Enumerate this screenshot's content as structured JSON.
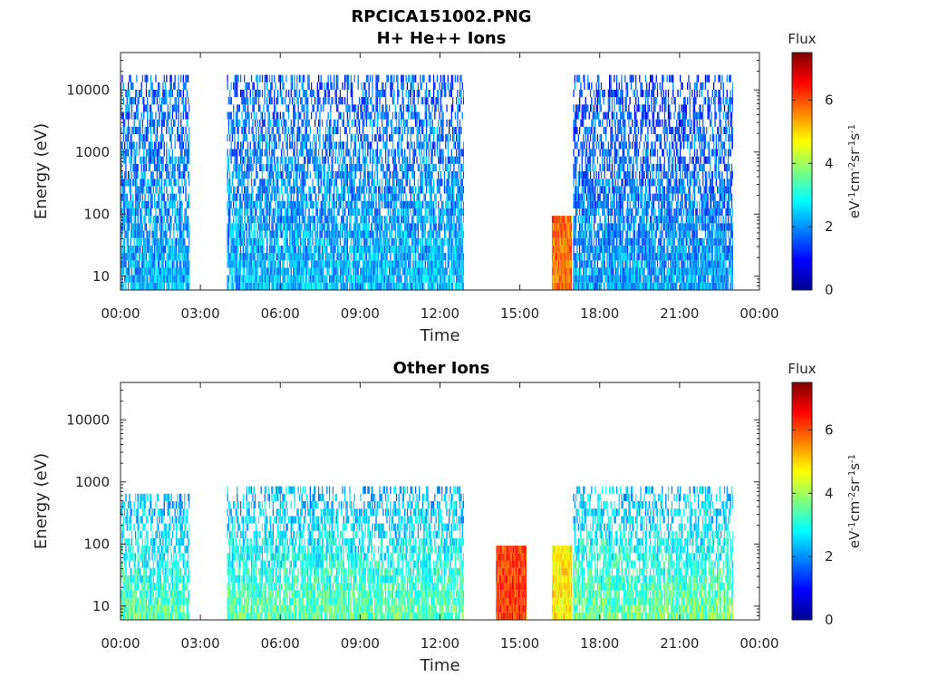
{
  "figure": {
    "title_lines": [
      "RPCICA151002.PNG",
      "H+ He++ Ions"
    ]
  },
  "colors": {
    "colormap": "jet",
    "axis": "#262626",
    "background": "#ffffff"
  },
  "chart_data": [
    {
      "type": "heatmap",
      "title": "H+ He++ Ions",
      "xlabel": "Time",
      "ylabel": "Energy (eV)",
      "x_tick_labels": [
        "00:00",
        "03:00",
        "06:00",
        "09:00",
        "12:00",
        "15:00",
        "18:00",
        "21:00",
        "00:00"
      ],
      "xlim_hours": [
        0,
        24
      ],
      "y_scale": "log",
      "ylim_eV": [
        6,
        40000
      ],
      "y_tick_labels": [
        "10",
        "100",
        "1000",
        "10000"
      ],
      "colorbar": {
        "label": "Flux",
        "units": "eV-1cm-2sr-1s-1",
        "ticks": [
          "0",
          "2",
          "4",
          "6"
        ],
        "range": [
          0,
          7.5
        ]
      },
      "data_segments": [
        {
          "start_hour": 0.0,
          "end_hour": 2.6,
          "peak_energy_eV": 15000,
          "typical_flux": 2.2,
          "high_energy_flux": 1.6
        },
        {
          "start_hour": 4.0,
          "end_hour": 12.9,
          "peak_energy_eV": 15000,
          "typical_flux": 2.3,
          "high_energy_flux": 1.6
        },
        {
          "start_hour": 16.2,
          "end_hour": 16.95,
          "peak_energy_eV": 80,
          "typical_flux": 5.8,
          "high_energy_flux": 5.8,
          "note": "burst"
        },
        {
          "start_hour": 17.0,
          "end_hour": 23.0,
          "peak_energy_eV": 15000,
          "typical_flux": 2.1,
          "high_energy_flux": 1.4
        }
      ],
      "grid": false
    },
    {
      "type": "heatmap",
      "title": "Other Ions",
      "xlabel": "Time",
      "ylabel": "Energy (eV)",
      "x_tick_labels": [
        "00:00",
        "03:00",
        "06:00",
        "09:00",
        "12:00",
        "15:00",
        "18:00",
        "21:00",
        "00:00"
      ],
      "xlim_hours": [
        0,
        24
      ],
      "y_scale": "log",
      "ylim_eV": [
        6,
        40000
      ],
      "y_tick_labels": [
        "10",
        "100",
        "1000",
        "10000"
      ],
      "colorbar": {
        "label": "Flux",
        "units": "eV-1cm-2sr-1s-1",
        "ticks": [
          "0",
          "2",
          "4",
          "6"
        ],
        "range": [
          0,
          7.5
        ]
      },
      "data_segments": [
        {
          "start_hour": 0.0,
          "end_hour": 2.6,
          "peak_energy_eV": 600,
          "typical_flux": 3.4,
          "high_energy_flux": 2.2
        },
        {
          "start_hour": 4.0,
          "end_hour": 12.9,
          "peak_energy_eV": 700,
          "typical_flux": 3.5,
          "high_energy_flux": 2.2
        },
        {
          "start_hour": 14.1,
          "end_hour": 15.25,
          "peak_energy_eV": 80,
          "typical_flux": 6.2,
          "high_energy_flux": 6.2,
          "note": "burst"
        },
        {
          "start_hour": 16.2,
          "end_hour": 16.95,
          "peak_energy_eV": 80,
          "typical_flux": 4.8,
          "high_energy_flux": 4.8,
          "note": "burst"
        },
        {
          "start_hour": 17.0,
          "end_hour": 23.0,
          "peak_energy_eV": 700,
          "typical_flux": 3.6,
          "high_energy_flux": 2.3
        }
      ],
      "grid": false
    }
  ]
}
